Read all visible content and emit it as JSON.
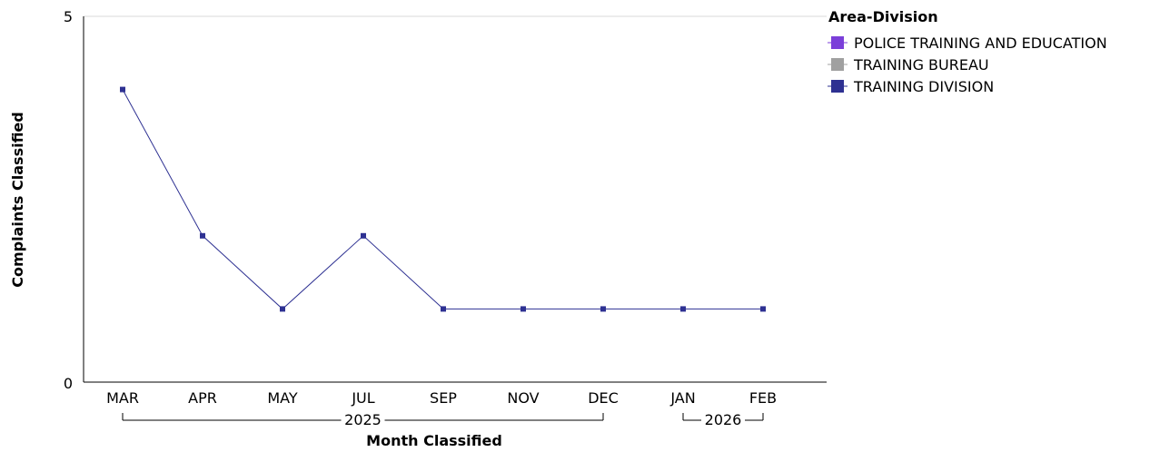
{
  "chart_data": {
    "type": "line",
    "title": "",
    "xlabel": "Month Classified",
    "ylabel": "Complaints Classified",
    "categories": [
      "MAR",
      "APR",
      "MAY",
      "JUL",
      "SEP",
      "NOV",
      "DEC",
      "JAN",
      "FEB"
    ],
    "year_groups": [
      {
        "label": "2025",
        "categories": [
          "MAR",
          "APR",
          "MAY",
          "JUL",
          "SEP",
          "NOV",
          "DEC"
        ]
      },
      {
        "label": "2026",
        "categories": [
          "JAN",
          "FEB"
        ]
      }
    ],
    "yticks": [
      "0",
      "5"
    ],
    "ylim": [
      0,
      5
    ],
    "grid": false,
    "legend": {
      "title": "Area-Division",
      "position": "top-right",
      "entries": [
        {
          "name": "POLICE TRAINING AND EDUCATION",
          "color": "#7b3fd9"
        },
        {
          "name": "TRAINING BUREAU",
          "color": "#a0a0a0"
        },
        {
          "name": "TRAINING DIVISION",
          "color": "#2e3192"
        }
      ]
    },
    "series": [
      {
        "name": "TRAINING DIVISION",
        "color": "#2e3192",
        "values": [
          4,
          2,
          1,
          2,
          1,
          1,
          1,
          1,
          1
        ]
      }
    ]
  }
}
